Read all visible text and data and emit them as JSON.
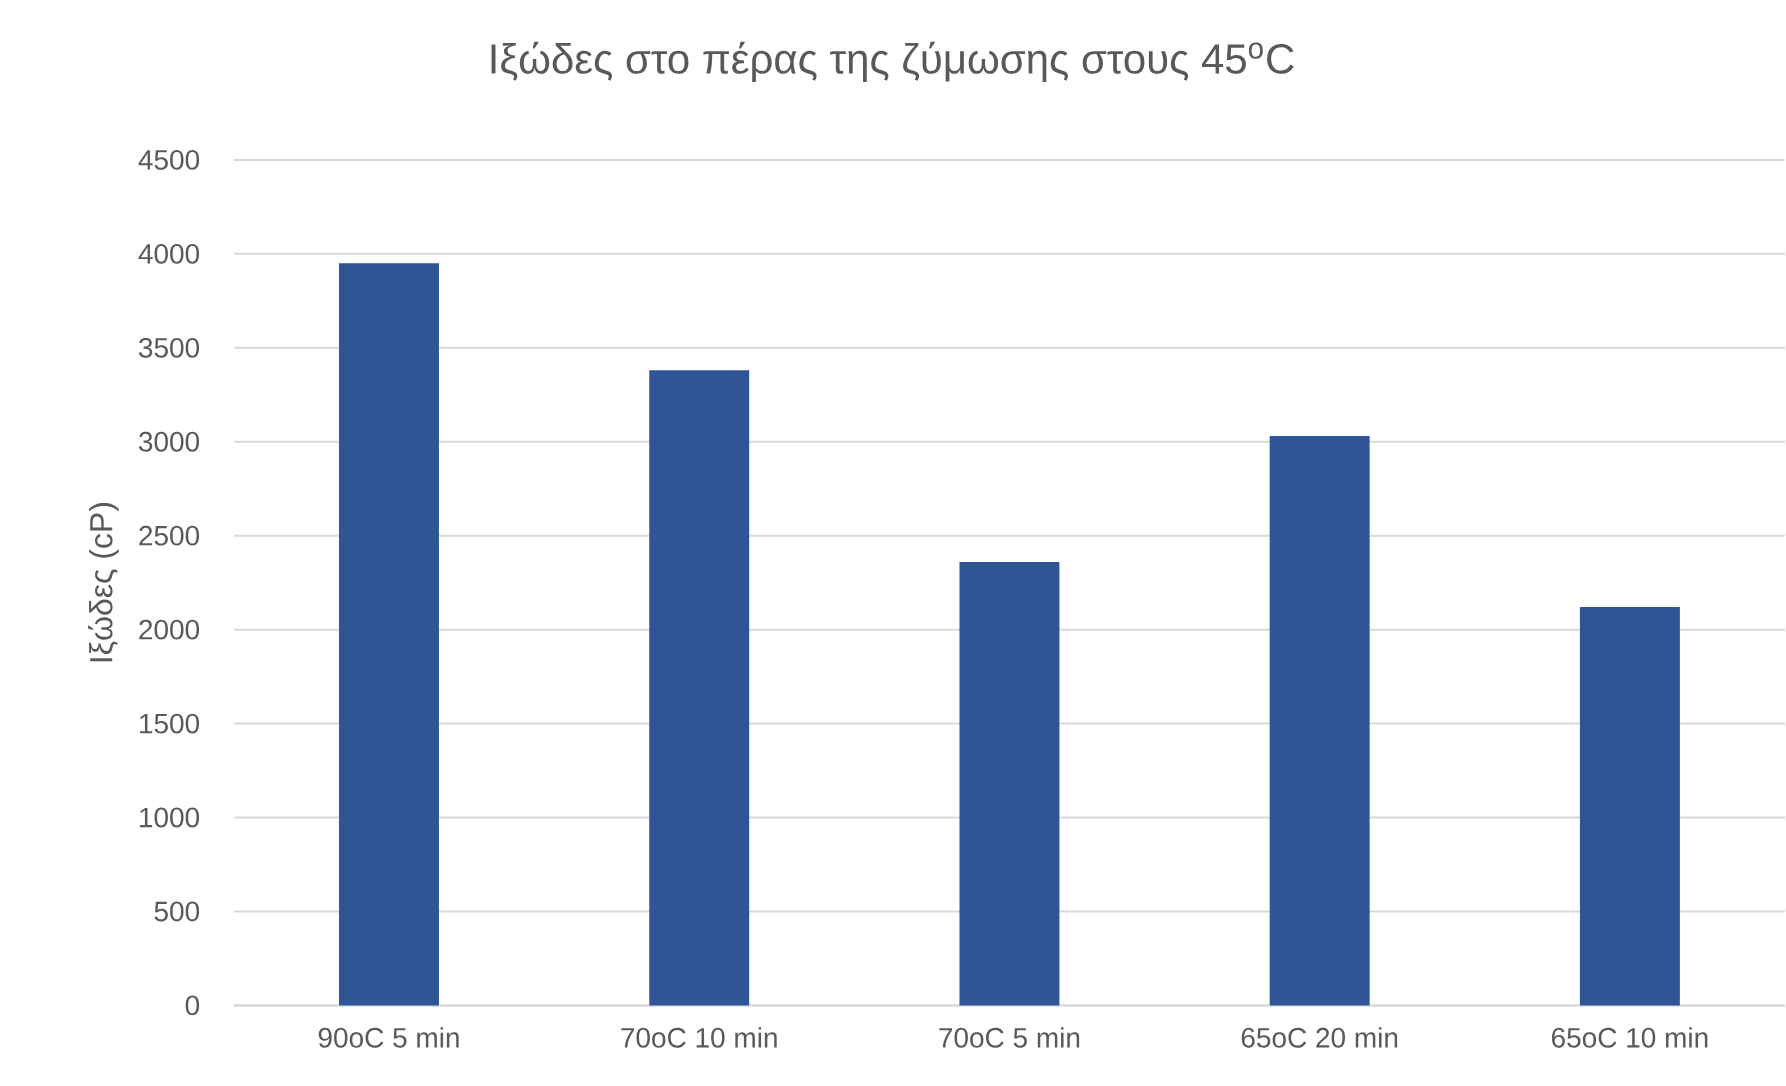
{
  "chart_data": {
    "type": "bar",
    "title": "Ιξώδες στο πέρας της ζύμωσης στους 45$^{o}$C",
    "ylabel": "Ιξώδες (cP)",
    "categories": [
      "90oC 5 min",
      "70oC 10 min",
      "70oC 5 min",
      "65oC 20 min",
      "65oC 10 min"
    ],
    "values": [
      3950,
      3380,
      2360,
      3030,
      2120
    ],
    "color": "#2f5597",
    "ylim": [
      0,
      4500
    ],
    "yticks": [
      0,
      500,
      1000,
      1500,
      2000,
      2500,
      3000,
      3500,
      4000,
      4500
    ],
    "grid": "y"
  }
}
